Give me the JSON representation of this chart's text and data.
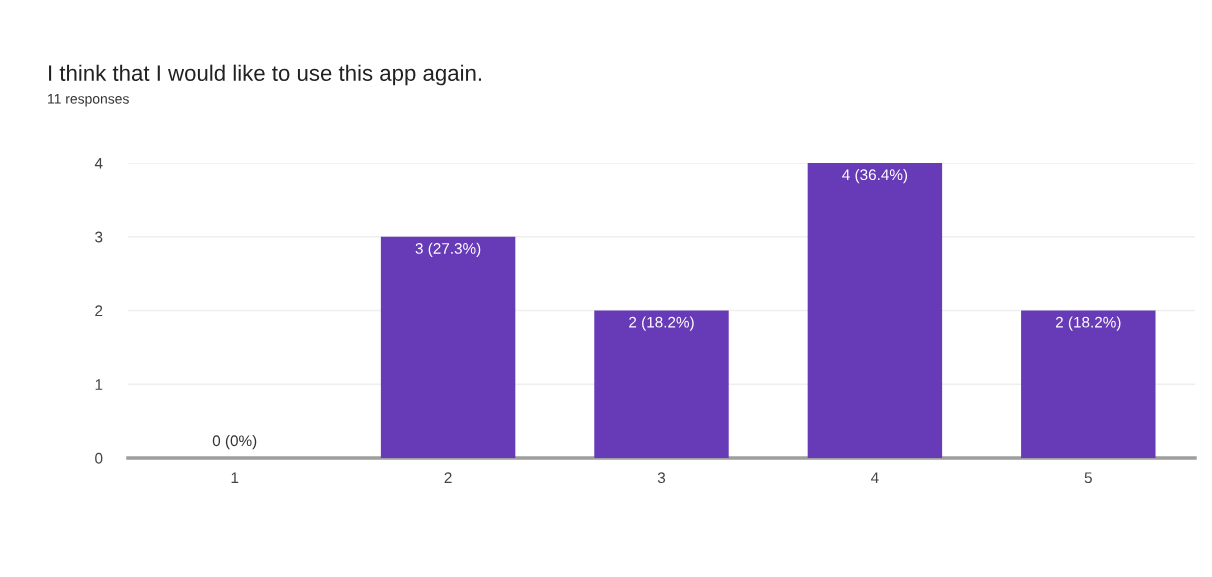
{
  "chart_data": {
    "type": "bar",
    "title": "I think that I would like to use this app again.",
    "subtitle": "11 responses",
    "categories": [
      "1",
      "2",
      "3",
      "4",
      "5"
    ],
    "values": [
      0,
      3,
      2,
      4,
      2
    ],
    "value_labels": [
      "0 (0%)",
      "3 (27.3%)",
      "2 (18.2%)",
      "4 (36.4%)",
      "2 (18.2%)"
    ],
    "color": "#673ab7",
    "ylim": [
      0,
      4
    ],
    "yticks": [
      0,
      1,
      2,
      3,
      4
    ],
    "grid": "y"
  }
}
